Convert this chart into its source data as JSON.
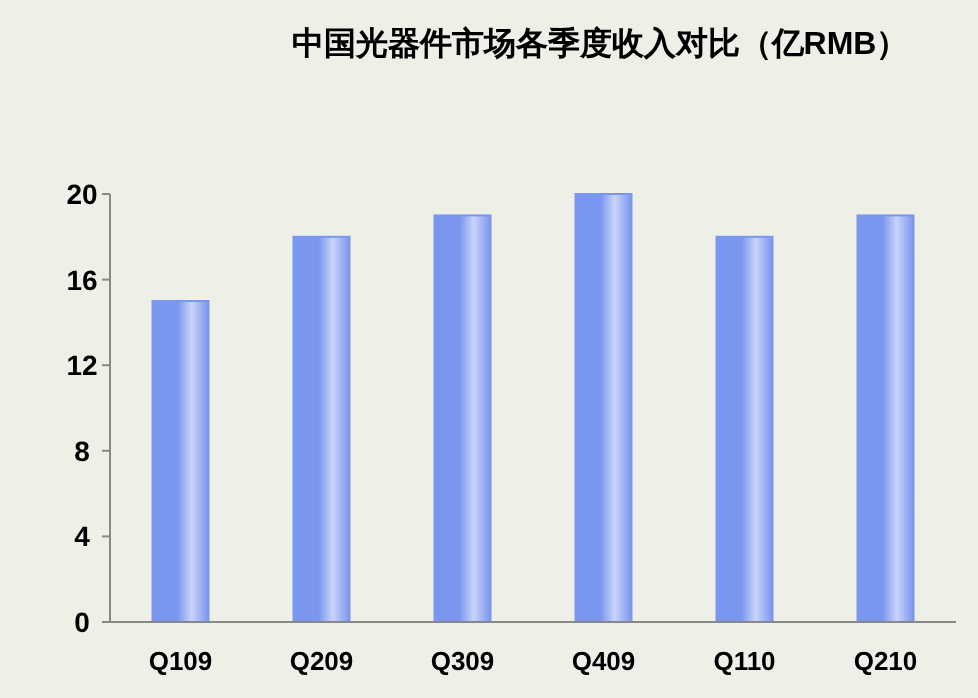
{
  "chart_data": {
    "type": "bar",
    "title": "中国光器件市场各季度收入对比（亿RMB）",
    "categories": [
      "Q109",
      "Q209",
      "Q309",
      "Q409",
      "Q110",
      "Q210"
    ],
    "values": [
      15,
      18,
      19,
      20,
      18,
      19
    ],
    "color": "#7b96ee",
    "ylim": [
      0,
      20
    ],
    "yticks": [
      0,
      4,
      8,
      12,
      16,
      20
    ]
  }
}
